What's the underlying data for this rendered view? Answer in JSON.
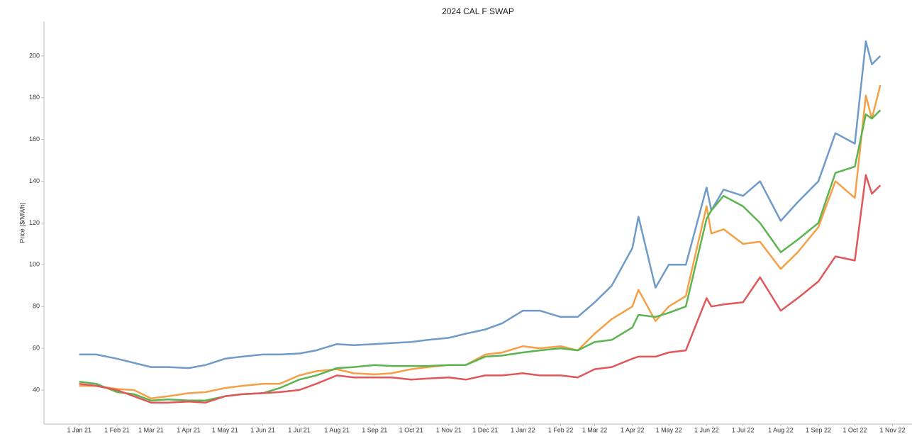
{
  "chart_data": {
    "type": "line",
    "title": "2024 CAL F SWAP",
    "y_label": "Price ($/MWh)",
    "x": [
      "2021-01-01",
      "2021-01-15",
      "2021-02-01",
      "2021-02-15",
      "2021-03-01",
      "2021-03-15",
      "2021-04-01",
      "2021-04-15",
      "2021-05-01",
      "2021-05-15",
      "2021-06-01",
      "2021-06-15",
      "2021-07-01",
      "2021-07-15",
      "2021-08-01",
      "2021-08-15",
      "2021-09-01",
      "2021-09-15",
      "2021-10-01",
      "2021-10-15",
      "2021-11-01",
      "2021-11-15",
      "2021-12-01",
      "2021-12-15",
      "2022-01-01",
      "2022-01-15",
      "2022-02-01",
      "2022-02-15",
      "2022-03-01",
      "2022-03-15",
      "2022-04-01",
      "2022-04-06",
      "2022-04-20",
      "2022-05-01",
      "2022-05-15",
      "2022-06-01",
      "2022-06-05",
      "2022-06-15",
      "2022-07-01",
      "2022-07-15",
      "2022-08-01",
      "2022-08-15",
      "2022-09-01",
      "2022-09-15",
      "2022-10-01",
      "2022-10-10",
      "2022-10-15",
      "2022-10-22"
    ],
    "series": [
      {
        "color": "#6f9bc9",
        "values": [
          57,
          57,
          55,
          53,
          51,
          51,
          50.5,
          52,
          55,
          56,
          57,
          57,
          57.5,
          59,
          62,
          61.5,
          62,
          62.5,
          63,
          64,
          65,
          67,
          69,
          72,
          78,
          78,
          75,
          75,
          82,
          90,
          108,
          123,
          89,
          100,
          100,
          137,
          126,
          136,
          133,
          140,
          121,
          130,
          140,
          163,
          158,
          207,
          196,
          200
        ]
      },
      {
        "color": "#f59f47",
        "values": [
          42,
          42,
          40.5,
          40,
          36,
          37,
          38.5,
          39,
          41,
          42,
          43,
          43,
          47,
          49,
          50,
          48,
          47.5,
          48,
          50,
          51,
          52,
          52,
          57,
          58,
          61,
          60,
          61,
          59,
          67,
          74,
          80,
          88,
          73,
          80,
          85,
          128,
          115,
          117,
          110,
          111,
          98,
          106,
          118,
          140,
          132,
          181,
          170,
          186
        ]
      },
      {
        "color": "#5cb450",
        "values": [
          44,
          43,
          39,
          38,
          35,
          35.5,
          35,
          35,
          37,
          38,
          38.5,
          41,
          45,
          47,
          50.5,
          51,
          52,
          51.5,
          51.5,
          51.5,
          52,
          52,
          56,
          56.5,
          58,
          59,
          60,
          59,
          63,
          64,
          70,
          76,
          75,
          77,
          80,
          122,
          126,
          133,
          128,
          120,
          106,
          112,
          120,
          144,
          147,
          172,
          170,
          174
        ]
      },
      {
        "color": "#e15759",
        "values": [
          43,
          42,
          40,
          37,
          34,
          34,
          34.5,
          34,
          37,
          38,
          38.5,
          39,
          40,
          43,
          47,
          46,
          46,
          46,
          45,
          45.5,
          46,
          45,
          47,
          47,
          48,
          47,
          47,
          46,
          50,
          51,
          55,
          56,
          56,
          58,
          59,
          84,
          80,
          81,
          82,
          94,
          78,
          84,
          92,
          104,
          102,
          143,
          134,
          138
        ]
      }
    ],
    "xlim": [
      "2020-12-03",
      "2022-11-17"
    ],
    "xticks": [
      {
        "value": "2021-01-01",
        "label": "1 Jan 21"
      },
      {
        "value": "2021-02-01",
        "label": "1 Feb 21"
      },
      {
        "value": "2021-03-01",
        "label": "1 Mar 21"
      },
      {
        "value": "2021-04-01",
        "label": "1 Apr 21"
      },
      {
        "value": "2021-05-01",
        "label": "1 May 21"
      },
      {
        "value": "2021-06-01",
        "label": "1 Jun 21"
      },
      {
        "value": "2021-07-01",
        "label": "1 Jul 21"
      },
      {
        "value": "2021-08-01",
        "label": "1 Aug 21"
      },
      {
        "value": "2021-09-01",
        "label": "1 Sep 21"
      },
      {
        "value": "2021-10-01",
        "label": "1 Oct 21"
      },
      {
        "value": "2021-11-01",
        "label": "1 Nov 21"
      },
      {
        "value": "2021-12-01",
        "label": "1 Dec 21"
      },
      {
        "value": "2022-01-01",
        "label": "1 Jan 22"
      },
      {
        "value": "2022-02-01",
        "label": "1 Feb 22"
      },
      {
        "value": "2022-03-01",
        "label": "1 Mar 22"
      },
      {
        "value": "2022-04-01",
        "label": "1 Apr 22"
      },
      {
        "value": "2022-05-01",
        "label": "1 May 22"
      },
      {
        "value": "2022-06-01",
        "label": "1 Jun 22"
      },
      {
        "value": "2022-07-01",
        "label": "1 Jul 22"
      },
      {
        "value": "2022-08-01",
        "label": "1 Aug 22"
      },
      {
        "value": "2022-09-01",
        "label": "1 Sep 22"
      },
      {
        "value": "2022-10-01",
        "label": "1 Oct 22"
      },
      {
        "value": "2022-11-01",
        "label": "1 Nov 22"
      }
    ],
    "ylim": [
      23.7,
      216.6
    ],
    "yticks": [
      40,
      60,
      80,
      100,
      120,
      140,
      160,
      180,
      200
    ]
  }
}
